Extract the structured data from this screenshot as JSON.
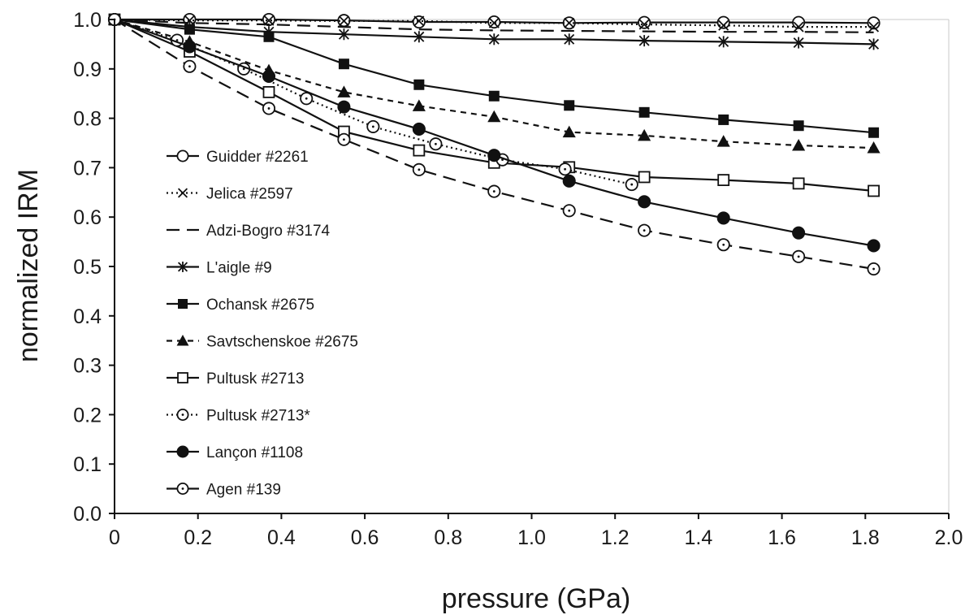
{
  "chart_data": {
    "type": "line",
    "xlabel": "pressure (GPa)",
    "ylabel": "normalized IRM",
    "xlim": [
      0,
      2.0
    ],
    "ylim": [
      0,
      1.0
    ],
    "x_ticks": [
      "0",
      "0.2",
      "0.4",
      "0.6",
      "0.8",
      "1.0",
      "1.2",
      "1.4",
      "1.6",
      "1.8",
      "2.0"
    ],
    "y_ticks": [
      "0.0",
      "0.1",
      "0.2",
      "0.3",
      "0.4",
      "0.5",
      "0.6",
      "0.7",
      "0.8",
      "0.9",
      "1.0"
    ],
    "grid": false,
    "legend_position": "left",
    "series": [
      {
        "name": "Guidder #2261",
        "marker": "open-circle",
        "dash": "solid",
        "x": [
          0,
          0.18,
          0.37,
          0.55,
          0.73,
          0.91,
          1.09,
          1.27,
          1.46,
          1.64,
          1.82
        ],
        "y": [
          1.0,
          1.0,
          1.0,
          0.998,
          0.995,
          0.995,
          0.993,
          0.994,
          0.994,
          0.994,
          0.993
        ]
      },
      {
        "name": "Jelica #2597",
        "marker": "cross",
        "dash": "dotted",
        "x": [
          0,
          0.18,
          0.37,
          0.55,
          0.73,
          0.91,
          1.09,
          1.27,
          1.46,
          1.64,
          1.82
        ],
        "y": [
          1.0,
          0.998,
          0.998,
          0.997,
          0.997,
          0.993,
          0.993,
          0.99,
          0.988,
          0.985,
          0.985
        ]
      },
      {
        "name": "Adzi-Bogro #3174",
        "marker": "none",
        "dash": "long-dash",
        "x": [
          0,
          0.18,
          0.37,
          0.55,
          0.73,
          0.91,
          1.09,
          1.27,
          1.46,
          1.64,
          1.82
        ],
        "y": [
          1.0,
          0.993,
          0.99,
          0.985,
          0.98,
          0.978,
          0.977,
          0.976,
          0.975,
          0.975,
          0.974
        ]
      },
      {
        "name": "L'aigle #9",
        "marker": "star",
        "dash": "solid",
        "x": [
          0,
          0.18,
          0.37,
          0.55,
          0.73,
          0.91,
          1.09,
          1.27,
          1.46,
          1.64,
          1.82
        ],
        "y": [
          1.0,
          0.985,
          0.975,
          0.97,
          0.965,
          0.96,
          0.96,
          0.957,
          0.955,
          0.953,
          0.95
        ]
      },
      {
        "name": "Ochansk #2675",
        "marker": "filled-square",
        "dash": "solid",
        "x": [
          0,
          0.18,
          0.37,
          0.55,
          0.73,
          0.91,
          1.09,
          1.27,
          1.46,
          1.64,
          1.82
        ],
        "y": [
          1.0,
          0.98,
          0.965,
          0.91,
          0.868,
          0.845,
          0.826,
          0.812,
          0.797,
          0.785,
          0.771
        ]
      },
      {
        "name": "Savtschenskoe #2675",
        "marker": "filled-triangle",
        "dash": "dashed",
        "x": [
          0,
          0.18,
          0.37,
          0.55,
          0.73,
          0.91,
          1.09,
          1.27,
          1.46,
          1.64,
          1.82
        ],
        "y": [
          1.0,
          0.955,
          0.897,
          0.853,
          0.825,
          0.803,
          0.772,
          0.765,
          0.753,
          0.745,
          0.74
        ]
      },
      {
        "name": "Pultusk #2713",
        "marker": "open-square",
        "dash": "solid",
        "x": [
          0,
          0.18,
          0.37,
          0.55,
          0.73,
          0.91,
          1.09,
          1.27,
          1.46,
          1.64,
          1.82
        ],
        "y": [
          1.0,
          0.935,
          0.853,
          0.773,
          0.735,
          0.71,
          0.701,
          0.681,
          0.675,
          0.668,
          0.653
        ]
      },
      {
        "name": "Pultusk #2713*",
        "marker": "dotted-circle",
        "dash": "dotted",
        "x": [
          0,
          0.15,
          0.31,
          0.46,
          0.62,
          0.77,
          0.93,
          1.08,
          1.24
        ],
        "y": [
          1.0,
          0.958,
          0.9,
          0.84,
          0.783,
          0.748,
          0.716,
          0.697,
          0.666
        ]
      },
      {
        "name": "Lançon #1108",
        "marker": "filled-circle",
        "dash": "solid",
        "x": [
          0,
          0.18,
          0.37,
          0.55,
          0.73,
          0.91,
          1.09,
          1.27,
          1.46,
          1.64,
          1.82
        ],
        "y": [
          1.0,
          0.945,
          0.885,
          0.823,
          0.778,
          0.725,
          0.673,
          0.631,
          0.598,
          0.568,
          0.542
        ]
      },
      {
        "name": "Agen #139",
        "marker": "dotted-circle",
        "dash": "long-dash",
        "x": [
          0,
          0.18,
          0.37,
          0.55,
          0.73,
          0.91,
          1.09,
          1.27,
          1.46,
          1.64,
          1.82
        ],
        "y": [
          1.0,
          0.905,
          0.82,
          0.757,
          0.696,
          0.652,
          0.613,
          0.573,
          0.544,
          0.52,
          0.495
        ]
      }
    ]
  }
}
